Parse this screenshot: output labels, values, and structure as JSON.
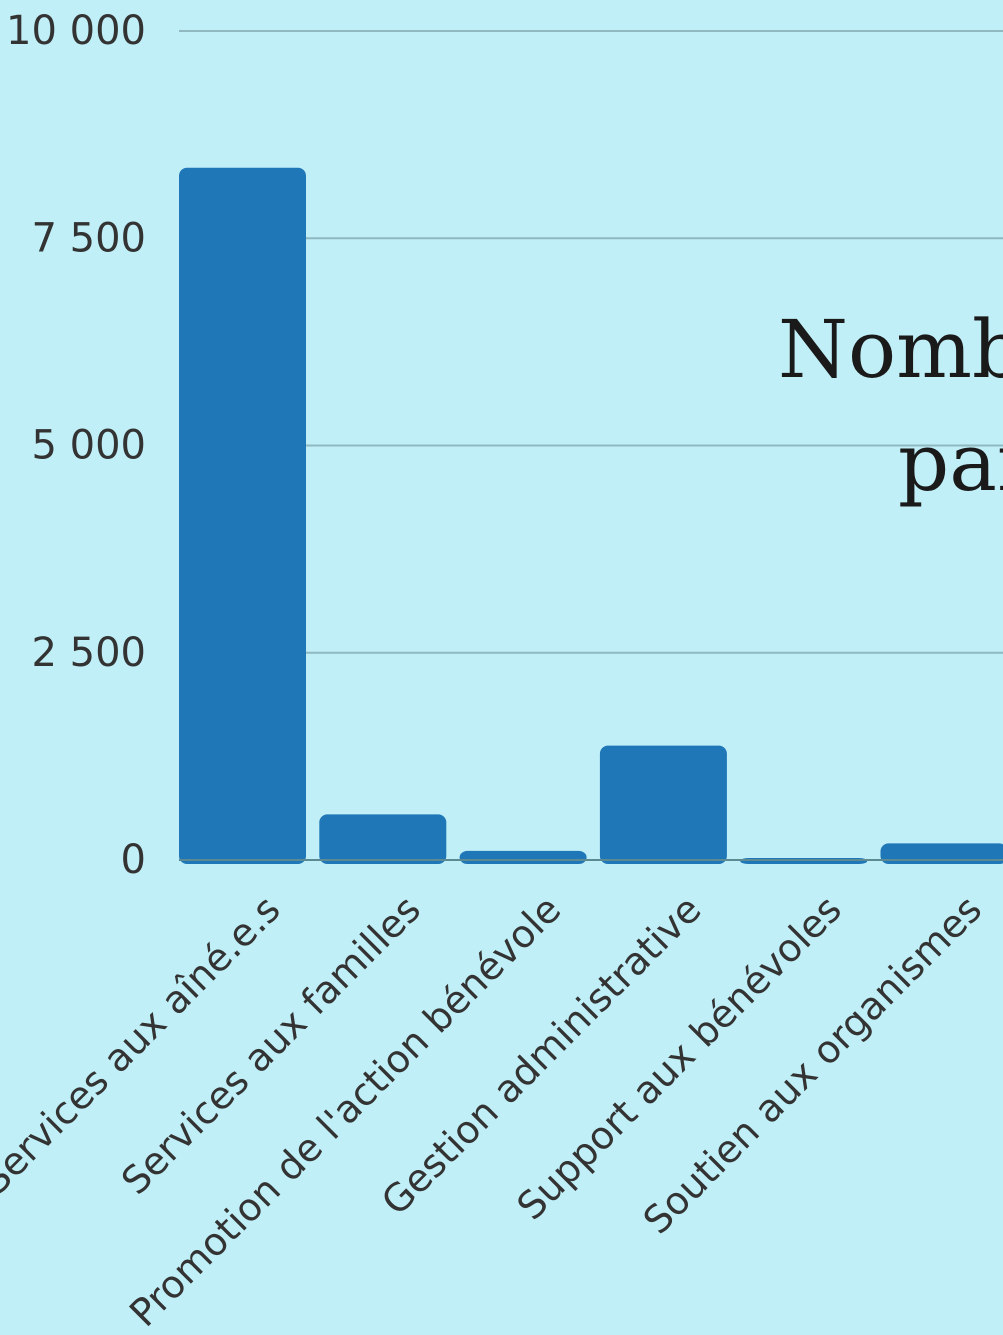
{
  "chart_data": {
    "type": "bar",
    "title_lines": [
      "Nomb",
      "par"
    ],
    "categories": [
      "Services aux aîné.e.s",
      "Services aux familles",
      "Promotion de l'action bénévole",
      "Gestion administrative",
      "Support aux bénévoles",
      "Soutien aux organismes"
    ],
    "values": [
      8350,
      550,
      110,
      1380,
      20,
      200
    ],
    "ylim": [
      0,
      10000
    ],
    "yticks": [
      0,
      2500,
      5000,
      7500,
      10000
    ],
    "ytick_labels": [
      "0",
      "2 500",
      "5 000",
      "7 500",
      "10 000"
    ],
    "grid": true,
    "xlabel": "",
    "ylabel": ""
  },
  "colors": {
    "background": "#c0eff7",
    "bar": "#1f77b8",
    "grid": "#8fb8c0",
    "axis": "#5b8a93",
    "text": "#333333",
    "title": "#1a1a1a"
  }
}
